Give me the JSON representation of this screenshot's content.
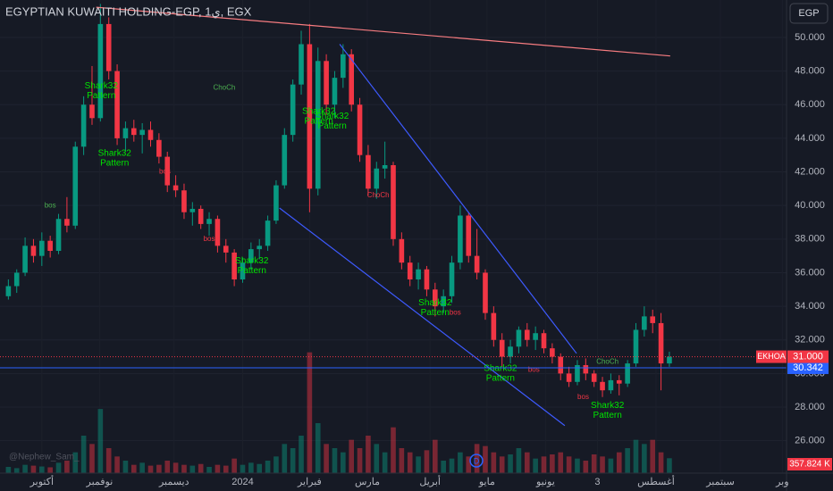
{
  "chart_data": {
    "type": "candlestick",
    "title": "EGYPTIAN KUWAITI HOLDING-EGP, 1ي, EGX",
    "currency": "EGP",
    "watermark": "@Nephew_Sam_",
    "up_color": "#089981",
    "down_color": "#f23645",
    "grid": true,
    "xlim": [
      -1,
      93
    ],
    "xticks": [
      {
        "value": 4,
        "label": "أكتوبر"
      },
      {
        "value": 10.9,
        "label": "نوفمبر"
      },
      {
        "value": 19.8,
        "label": "ديسمبر"
      },
      {
        "value": 28,
        "label": "2024"
      },
      {
        "value": 36,
        "label": "فبراير"
      },
      {
        "value": 42.9,
        "label": "مارس"
      },
      {
        "value": 50.4,
        "label": "أبريل"
      },
      {
        "value": 57.2,
        "label": "مايو"
      },
      {
        "value": 64.2,
        "label": "يونيو"
      },
      {
        "value": 70.4,
        "label": "3"
      },
      {
        "value": 77.4,
        "label": "أغسطس"
      },
      {
        "value": 85.1,
        "label": "سبتمبر"
      },
      {
        "value": 92.5,
        "label": "وبر"
      }
    ],
    "ylim": [
      24.07,
      52.23
    ],
    "yticks": [
      {
        "value": 26,
        "label": "26.000"
      },
      {
        "value": 28,
        "label": "28.000"
      },
      {
        "value": 30,
        "label": "30.000"
      },
      {
        "value": 32,
        "label": "32.000"
      },
      {
        "value": 34,
        "label": "34.000"
      },
      {
        "value": 36,
        "label": "36.000"
      },
      {
        "value": 38,
        "label": "38.000"
      },
      {
        "value": 40,
        "label": "40.000"
      },
      {
        "value": 42,
        "label": "42.000"
      },
      {
        "value": 44,
        "label": "44.000"
      },
      {
        "value": 46,
        "label": "46.000"
      },
      {
        "value": 48,
        "label": "48.000"
      },
      {
        "value": 50,
        "label": "50.000"
      }
    ],
    "ohlc": [
      [
        34.6,
        35.6,
        34.4,
        35.2
      ],
      [
        35.2,
        36.2,
        34.8,
        36.0
      ],
      [
        36.0,
        38.1,
        35.8,
        37.6
      ],
      [
        37.6,
        38.0,
        36.6,
        37.0
      ],
      [
        37.0,
        38.4,
        36.4,
        37.9
      ],
      [
        37.9,
        38.2,
        36.9,
        37.3
      ],
      [
        37.3,
        39.5,
        37.1,
        39.2
      ],
      [
        39.2,
        40.5,
        38.4,
        38.8
      ],
      [
        38.8,
        43.8,
        38.6,
        43.5
      ],
      [
        43.5,
        46.5,
        43.0,
        46.0
      ],
      [
        46.0,
        48.3,
        44.8,
        45.2
      ],
      [
        45.2,
        52.0,
        45.0,
        50.8
      ],
      [
        50.8,
        51.2,
        47.5,
        48.0
      ],
      [
        48.0,
        48.4,
        43.6,
        44.0
      ],
      [
        44.0,
        45.0,
        43.2,
        44.6
      ],
      [
        44.6,
        45.1,
        43.8,
        44.2
      ],
      [
        44.2,
        44.9,
        43.1,
        44.5
      ],
      [
        44.5,
        45.0,
        43.5,
        43.9
      ],
      [
        43.9,
        44.3,
        42.5,
        42.9
      ],
      [
        42.9,
        43.2,
        40.8,
        41.2
      ],
      [
        41.2,
        41.8,
        40.5,
        40.9
      ],
      [
        40.9,
        41.3,
        39.2,
        39.6
      ],
      [
        39.6,
        40.2,
        38.8,
        39.8
      ],
      [
        39.8,
        40.0,
        38.6,
        38.9
      ],
      [
        38.9,
        39.6,
        38.2,
        39.2
      ],
      [
        39.2,
        39.4,
        37.2,
        37.6
      ],
      [
        37.6,
        38.0,
        36.6,
        37.2
      ],
      [
        37.2,
        37.4,
        35.2,
        35.6
      ],
      [
        35.6,
        36.9,
        35.4,
        36.6
      ],
      [
        36.6,
        37.8,
        36.2,
        37.4
      ],
      [
        37.4,
        38.0,
        36.8,
        37.6
      ],
      [
        37.6,
        39.4,
        37.3,
        39.1
      ],
      [
        39.1,
        41.5,
        38.9,
        41.2
      ],
      [
        41.2,
        44.6,
        41.0,
        44.2
      ],
      [
        44.2,
        47.5,
        43.8,
        47.2
      ],
      [
        47.2,
        50.4,
        46.6,
        49.6
      ],
      [
        49.6,
        50.8,
        39.6,
        41.0
      ],
      [
        41.0,
        49.4,
        40.6,
        48.6
      ],
      [
        48.6,
        49.0,
        45.4,
        46.0
      ],
      [
        46.0,
        48.0,
        45.2,
        47.6
      ],
      [
        47.6,
        49.6,
        47.0,
        49.0
      ],
      [
        49.0,
        49.3,
        45.6,
        46.0
      ],
      [
        46.0,
        46.4,
        42.6,
        43.0
      ],
      [
        43.0,
        43.6,
        40.6,
        41.0
      ],
      [
        41.0,
        42.6,
        40.4,
        42.2
      ],
      [
        42.2,
        43.8,
        41.6,
        42.4
      ],
      [
        42.4,
        42.6,
        37.6,
        38.0
      ],
      [
        38.0,
        38.4,
        36.2,
        36.6
      ],
      [
        36.6,
        37.0,
        35.2,
        35.6
      ],
      [
        35.6,
        36.6,
        35.0,
        36.2
      ],
      [
        36.2,
        36.4,
        34.6,
        35.0
      ],
      [
        35.0,
        35.4,
        33.4,
        34.0
      ],
      [
        34.0,
        35.0,
        33.6,
        34.6
      ],
      [
        34.6,
        37.0,
        34.2,
        36.6
      ],
      [
        36.6,
        40.0,
        36.2,
        39.4
      ],
      [
        39.4,
        39.6,
        36.6,
        37.0
      ],
      [
        37.0,
        38.6,
        35.6,
        36.0
      ],
      [
        36.0,
        36.2,
        33.2,
        33.6
      ],
      [
        33.6,
        34.0,
        31.6,
        32.0
      ],
      [
        32.0,
        32.4,
        30.4,
        31.0
      ],
      [
        31.0,
        32.0,
        30.6,
        31.6
      ],
      [
        31.6,
        32.8,
        31.2,
        32.6
      ],
      [
        32.6,
        33.0,
        31.6,
        32.0
      ],
      [
        32.0,
        32.8,
        31.4,
        32.4
      ],
      [
        32.4,
        32.6,
        31.2,
        31.5
      ],
      [
        31.5,
        31.8,
        30.6,
        31.0
      ],
      [
        31.0,
        31.2,
        29.6,
        30.0
      ],
      [
        30.0,
        30.4,
        29.2,
        29.5
      ],
      [
        29.5,
        30.8,
        29.3,
        30.5
      ],
      [
        30.5,
        30.9,
        29.6,
        30.0
      ],
      [
        30.0,
        30.2,
        29.2,
        29.5
      ],
      [
        29.5,
        29.8,
        28.6,
        29.0
      ],
      [
        29.0,
        30.0,
        28.8,
        29.6
      ],
      [
        29.6,
        29.9,
        28.7,
        29.4
      ],
      [
        29.4,
        30.8,
        29.2,
        30.6
      ],
      [
        30.6,
        33.0,
        30.4,
        32.6
      ],
      [
        32.6,
        34.0,
        32.2,
        33.4
      ],
      [
        33.4,
        33.8,
        32.4,
        33.0
      ],
      [
        33.0,
        33.6,
        29.0,
        30.6
      ],
      [
        30.6,
        31.3,
        30.4,
        31.0
      ]
    ],
    "volume": [
      150,
      120,
      200,
      180,
      160,
      140,
      250,
      300,
      500,
      900,
      700,
      1540,
      600,
      400,
      300,
      200,
      250,
      180,
      200,
      300,
      250,
      200,
      180,
      220,
      150,
      200,
      180,
      350,
      200,
      250,
      220,
      300,
      400,
      700,
      600,
      900,
      2900,
      1200,
      700,
      600,
      500,
      800,
      600,
      900,
      700,
      500,
      1100,
      600,
      500,
      400,
      550,
      800,
      300,
      350,
      500,
      400,
      700,
      650,
      500,
      400,
      450,
      600,
      500,
      350,
      400,
      450,
      500,
      400,
      350,
      300,
      450,
      400,
      350,
      500,
      600,
      800,
      700,
      800,
      500,
      357.824
    ],
    "vlim": [
      0,
      3000
    ],
    "last_volume_label": "357.824 K",
    "last_price": {
      "value": 31,
      "label": "31.000",
      "symbol": "EKHOA"
    },
    "ref_line": {
      "value": 30.342,
      "label": "30.342",
      "color": "#2962ff"
    },
    "trendlines": [
      {
        "x": [
          10.5,
          79.1
        ],
        "y": [
          51.8,
          48.9
        ],
        "color": "#f77c80"
      },
      {
        "x": [
          39.6,
          67.9
        ],
        "y": [
          49.6,
          31.2
        ],
        "color": "#3d5afe"
      },
      {
        "x": [
          32.4,
          66.5
        ],
        "y": [
          39.85,
          26.9
        ],
        "color": "#3d5afe"
      }
    ],
    "annotations": [
      {
        "lines": [
          "Shark32",
          "Pattern"
        ],
        "x": 11.1,
        "y": 47.1,
        "color": "#00e600"
      },
      {
        "lines": [
          "Shark32",
          "Pattern"
        ],
        "x": 12.7,
        "y": 43.1,
        "color": "#00e600"
      },
      {
        "lines": [
          "Shark32",
          "Pattern"
        ],
        "x": 29.1,
        "y": 36.7,
        "color": "#00e600"
      },
      {
        "lines": [
          "Shark32",
          "Pattern"
        ],
        "x": 37.1,
        "y": 45.6,
        "color": "#00e600"
      },
      {
        "lines": [
          "Shark32",
          "Pattern"
        ],
        "x": 38.7,
        "y": 45.3,
        "color": "#00e600"
      },
      {
        "lines": [
          "Shark32",
          "Pattern"
        ],
        "x": 51.0,
        "y": 34.2,
        "color": "#00e600"
      },
      {
        "lines": [
          "Shark32",
          "Pattern"
        ],
        "x": 58.8,
        "y": 30.3,
        "color": "#00e600"
      },
      {
        "lines": [
          "Shark32",
          "Pattern"
        ],
        "x": 71.6,
        "y": 28.1,
        "color": "#00e600"
      },
      {
        "lines": [
          "ChoCh"
        ],
        "x": 25.8,
        "y": 47.0,
        "color": "#4caf50"
      },
      {
        "lines": [
          "ChoCh"
        ],
        "x": 71.6,
        "y": 30.7,
        "color": "#4caf50"
      },
      {
        "lines": [
          "ChoCh"
        ],
        "x": 44.2,
        "y": 40.6,
        "color": "#f23645"
      },
      {
        "lines": [
          "bos"
        ],
        "x": 5.0,
        "y": 40.0,
        "color": "#4caf50"
      },
      {
        "lines": [
          "bos"
        ],
        "x": 18.7,
        "y": 42.0,
        "color": "#f23645"
      },
      {
        "lines": [
          "bos"
        ],
        "x": 24.0,
        "y": 38.0,
        "color": "#f23645"
      },
      {
        "lines": [
          "bos"
        ],
        "x": 53.4,
        "y": 33.6,
        "color": "#f23645"
      },
      {
        "lines": [
          "bos"
        ],
        "x": 62.8,
        "y": 30.2,
        "color": "#f23645"
      },
      {
        "lines": [
          "bos"
        ],
        "x": 68.7,
        "y": 28.6,
        "color": "#f23645"
      }
    ]
  }
}
